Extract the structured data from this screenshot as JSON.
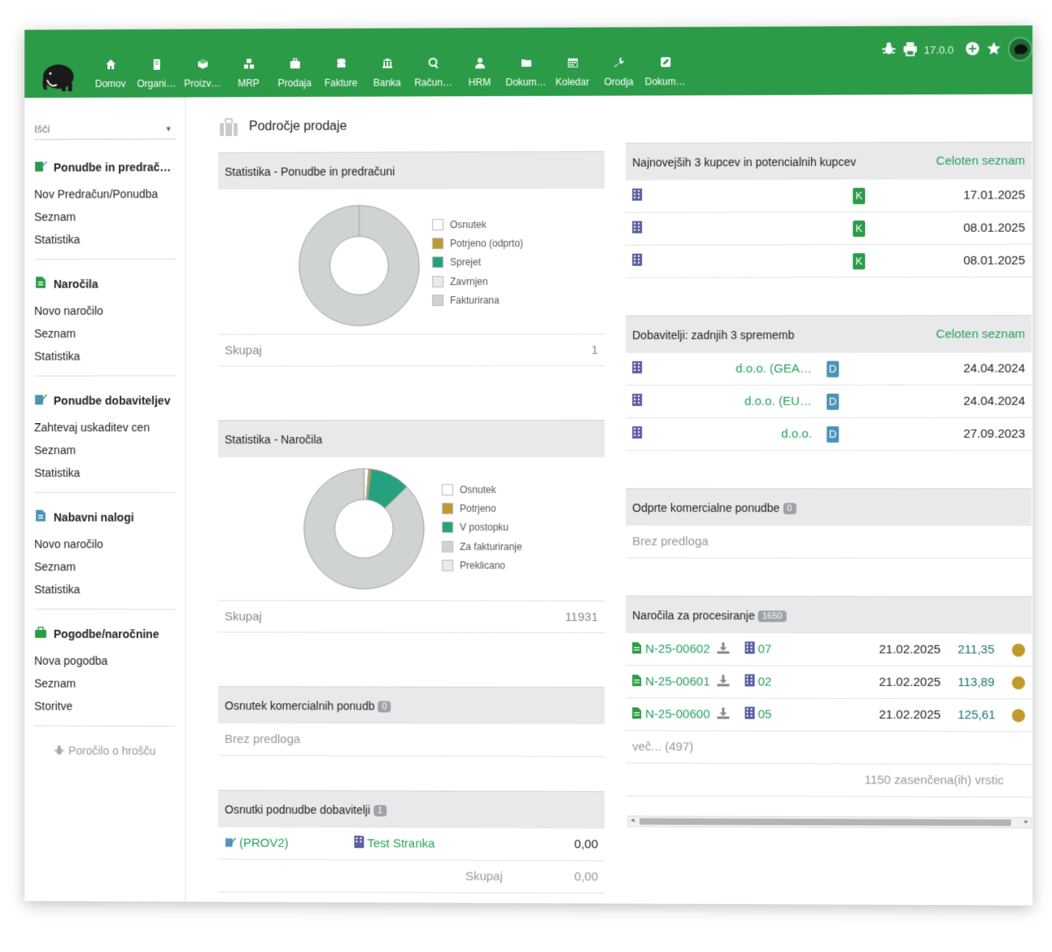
{
  "topbar": {
    "menu": [
      {
        "label": "Domov",
        "icon": "home-icon"
      },
      {
        "label": "Organi…",
        "icon": "building-icon"
      },
      {
        "label": "Proizv…",
        "icon": "cube-icon"
      },
      {
        "label": "MRP",
        "icon": "cubes-icon"
      },
      {
        "label": "Prodaja",
        "icon": "briefcase-icon"
      },
      {
        "label": "Fakture",
        "icon": "coins-icon"
      },
      {
        "label": "Banka",
        "icon": "bank-icon"
      },
      {
        "label": "Račun…",
        "icon": "search-dollar-icon"
      },
      {
        "label": "HRM",
        "icon": "user-tie-icon"
      },
      {
        "label": "Dokum…",
        "icon": "folder-icon"
      },
      {
        "label": "Koledar",
        "icon": "calendar-icon"
      },
      {
        "label": "Orodja",
        "icon": "wrench-icon"
      },
      {
        "label": "Dokum…",
        "icon": "edit-icon"
      }
    ],
    "version": "17.0.0"
  },
  "sidebar": {
    "search_placeholder": "Išči",
    "sections": [
      {
        "title": "Ponudbe in predrač…",
        "links": [
          "Nov Predračun/Ponudba",
          "Seznam",
          "Statistika"
        ]
      },
      {
        "title": "Naročila",
        "links": [
          "Novo naročilo",
          "Seznam",
          "Statistika"
        ]
      },
      {
        "title": "Ponudbe dobaviteljev",
        "links": [
          "Zahtevaj uskaditev cen",
          "Seznam",
          "Statistika"
        ]
      },
      {
        "title": "Nabavni nalogi",
        "links": [
          "Novo naročilo",
          "Seznam",
          "Statistika"
        ]
      },
      {
        "title": "Pogodbe/naročnine",
        "links": [
          "Nova pogodba",
          "Seznam",
          "Storitve"
        ]
      }
    ],
    "bug_report": "Poročilo o hrošču"
  },
  "page_title": "Področje prodaje",
  "stats_offers": {
    "title": "Statistika - Ponudbe in predračuni",
    "legend": [
      "Osnutek",
      "Potrjeno (odprto)",
      "Sprejet",
      "Zavrnjen",
      "Fakturirana"
    ],
    "total_label": "Skupaj",
    "total_value": "1"
  },
  "stats_orders": {
    "title": "Statistika - Naročila",
    "legend": [
      "Osnutek",
      "Potrjeno",
      "V postopku",
      "Za fakturiranje",
      "Preklicano"
    ],
    "total_label": "Skupaj",
    "total_value": "11931"
  },
  "draft_offers": {
    "title": "Osnutek komercialnih ponudb",
    "count": "0",
    "empty": "Brez predloga"
  },
  "draft_supplier": {
    "title": "Osnutki podnudbe dobavitelji",
    "count": "1",
    "row": {
      "ref": "(PROV2)",
      "company": "Test Stranka",
      "amount": "0,00"
    },
    "total_label": "Skupaj",
    "total_value": "0,00"
  },
  "latest_customers": {
    "title": "Najnovejših 3 kupcev in potencialnih kupcev",
    "link": "Celoten seznam",
    "rows": [
      {
        "badge": "K",
        "date": "17.01.2025"
      },
      {
        "badge": "K",
        "date": "08.01.2025"
      },
      {
        "badge": "K",
        "date": "08.01.2025"
      }
    ]
  },
  "suppliers": {
    "title": "Dobavitelji: zadnjih 3 sprememb",
    "link": "Celoten seznam",
    "rows": [
      {
        "name": "d.o.o. (GEA…",
        "badge": "D",
        "date": "24.04.2024"
      },
      {
        "name": "d.o.o. (EU…",
        "badge": "D",
        "date": "24.04.2024"
      },
      {
        "name": "d.o.o.",
        "badge": "D",
        "date": "27.09.2023"
      }
    ]
  },
  "open_offers": {
    "title": "Odprte komercialne ponudbe",
    "count": "0",
    "empty": "Brez predloga"
  },
  "processing": {
    "title": "Naročila za procesiranje",
    "count": "1650",
    "rows": [
      {
        "ref": "N-25-00602",
        "company": "07",
        "date": "21.02.2025",
        "amount": "211,35"
      },
      {
        "ref": "N-25-00601",
        "company": "02",
        "date": "21.02.2025",
        "amount": "113,89"
      },
      {
        "ref": "N-25-00600",
        "company": "05",
        "date": "21.02.2025",
        "amount": "125,61"
      }
    ],
    "more": "več... (497)",
    "shaded": "1150 zasenčena(ih) vrstic"
  },
  "colors": {
    "brand": "#2c9b48",
    "potrjeno": "#bf9a2e",
    "sprejet": "#26a17f",
    "grey": "#cfd4d2",
    "empty": "#ffffff"
  },
  "chart_data": [
    {
      "type": "pie",
      "title": "Statistika - Ponudbe in predračuni",
      "categories": [
        "Osnutek",
        "Potrjeno (odprto)",
        "Sprejet",
        "Zavrnjen",
        "Fakturirana"
      ],
      "values": [
        0,
        0,
        0,
        0,
        1
      ],
      "colors": [
        "#ffffff",
        "#bf9a2e",
        "#26a17f",
        "#e8ecea",
        "#cfd4d2"
      ]
    },
    {
      "type": "pie",
      "title": "Statistika - Naročila",
      "categories": [
        "Osnutek",
        "Potrjeno",
        "V postopku",
        "Za fakturiranje",
        "Preklicano"
      ],
      "values": [
        150,
        80,
        1280,
        10421,
        0
      ],
      "colors": [
        "#ffffff",
        "#bf9a2e",
        "#26a17f",
        "#cfd4d2",
        "#e8ecea"
      ]
    }
  ]
}
